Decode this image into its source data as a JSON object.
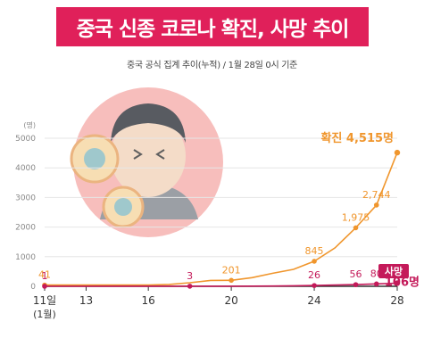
{
  "header": {
    "title": "중국 신종 코로나 확진, 사망 추이",
    "subtitle": "중국 공식 집계 추이(누적) / 1월 28일 0시 기준"
  },
  "illustration": {
    "icon": "sick-person-with-virus-icon"
  },
  "colors": {
    "accent": "#e0205a",
    "confirmed": "#f0962d",
    "deaths": "#c41a5a",
    "grid": "#e6e6e6",
    "axis": "#333333"
  },
  "chart_data": {
    "type": "line",
    "ylabel": "(명)",
    "ylim": [
      0,
      5000
    ],
    "yticks": [
      "0",
      "1000",
      "2000",
      "3000",
      "4000",
      "5000"
    ],
    "xlim": [
      11,
      28
    ],
    "xticks": [
      {
        "x": 11,
        "label": "11일",
        "sublabel": "(1월)"
      },
      {
        "x": 13,
        "label": "13"
      },
      {
        "x": 16,
        "label": "16"
      },
      {
        "x": 20,
        "label": "20"
      },
      {
        "x": 24,
        "label": "24"
      },
      {
        "x": 28,
        "label": "28"
      }
    ],
    "series": [
      {
        "name": "확진",
        "end_label": "확진 4,515명",
        "points": [
          {
            "x": 11,
            "y": 41,
            "label": "41"
          },
          {
            "x": 12,
            "y": 41
          },
          {
            "x": 13,
            "y": 41
          },
          {
            "x": 14,
            "y": 41
          },
          {
            "x": 15,
            "y": 41
          },
          {
            "x": 16,
            "y": 45
          },
          {
            "x": 17,
            "y": 62
          },
          {
            "x": 18,
            "y": 121
          },
          {
            "x": 19,
            "y": 198
          },
          {
            "x": 20,
            "y": 201,
            "label": "201"
          },
          {
            "x": 21,
            "y": 291
          },
          {
            "x": 22,
            "y": 440
          },
          {
            "x": 23,
            "y": 571
          },
          {
            "x": 24,
            "y": 845,
            "label": "845"
          },
          {
            "x": 25,
            "y": 1297
          },
          {
            "x": 26,
            "y": 1975,
            "label": "1,975"
          },
          {
            "x": 27,
            "y": 2744,
            "label": "2,744"
          },
          {
            "x": 28,
            "y": 4515
          }
        ]
      },
      {
        "name": "사망",
        "end_label": "106명",
        "points": [
          {
            "x": 11,
            "y": 1,
            "label": "1"
          },
          {
            "x": 18,
            "y": 3,
            "label": "3"
          },
          {
            "x": 20,
            "y": 3
          },
          {
            "x": 22,
            "y": 9
          },
          {
            "x": 23,
            "y": 17
          },
          {
            "x": 24,
            "y": 26,
            "label": "26"
          },
          {
            "x": 25,
            "y": 41
          },
          {
            "x": 26,
            "y": 56,
            "label": "56"
          },
          {
            "x": 27,
            "y": 80,
            "label": "80"
          },
          {
            "x": 28,
            "y": 106
          }
        ]
      }
    ]
  }
}
